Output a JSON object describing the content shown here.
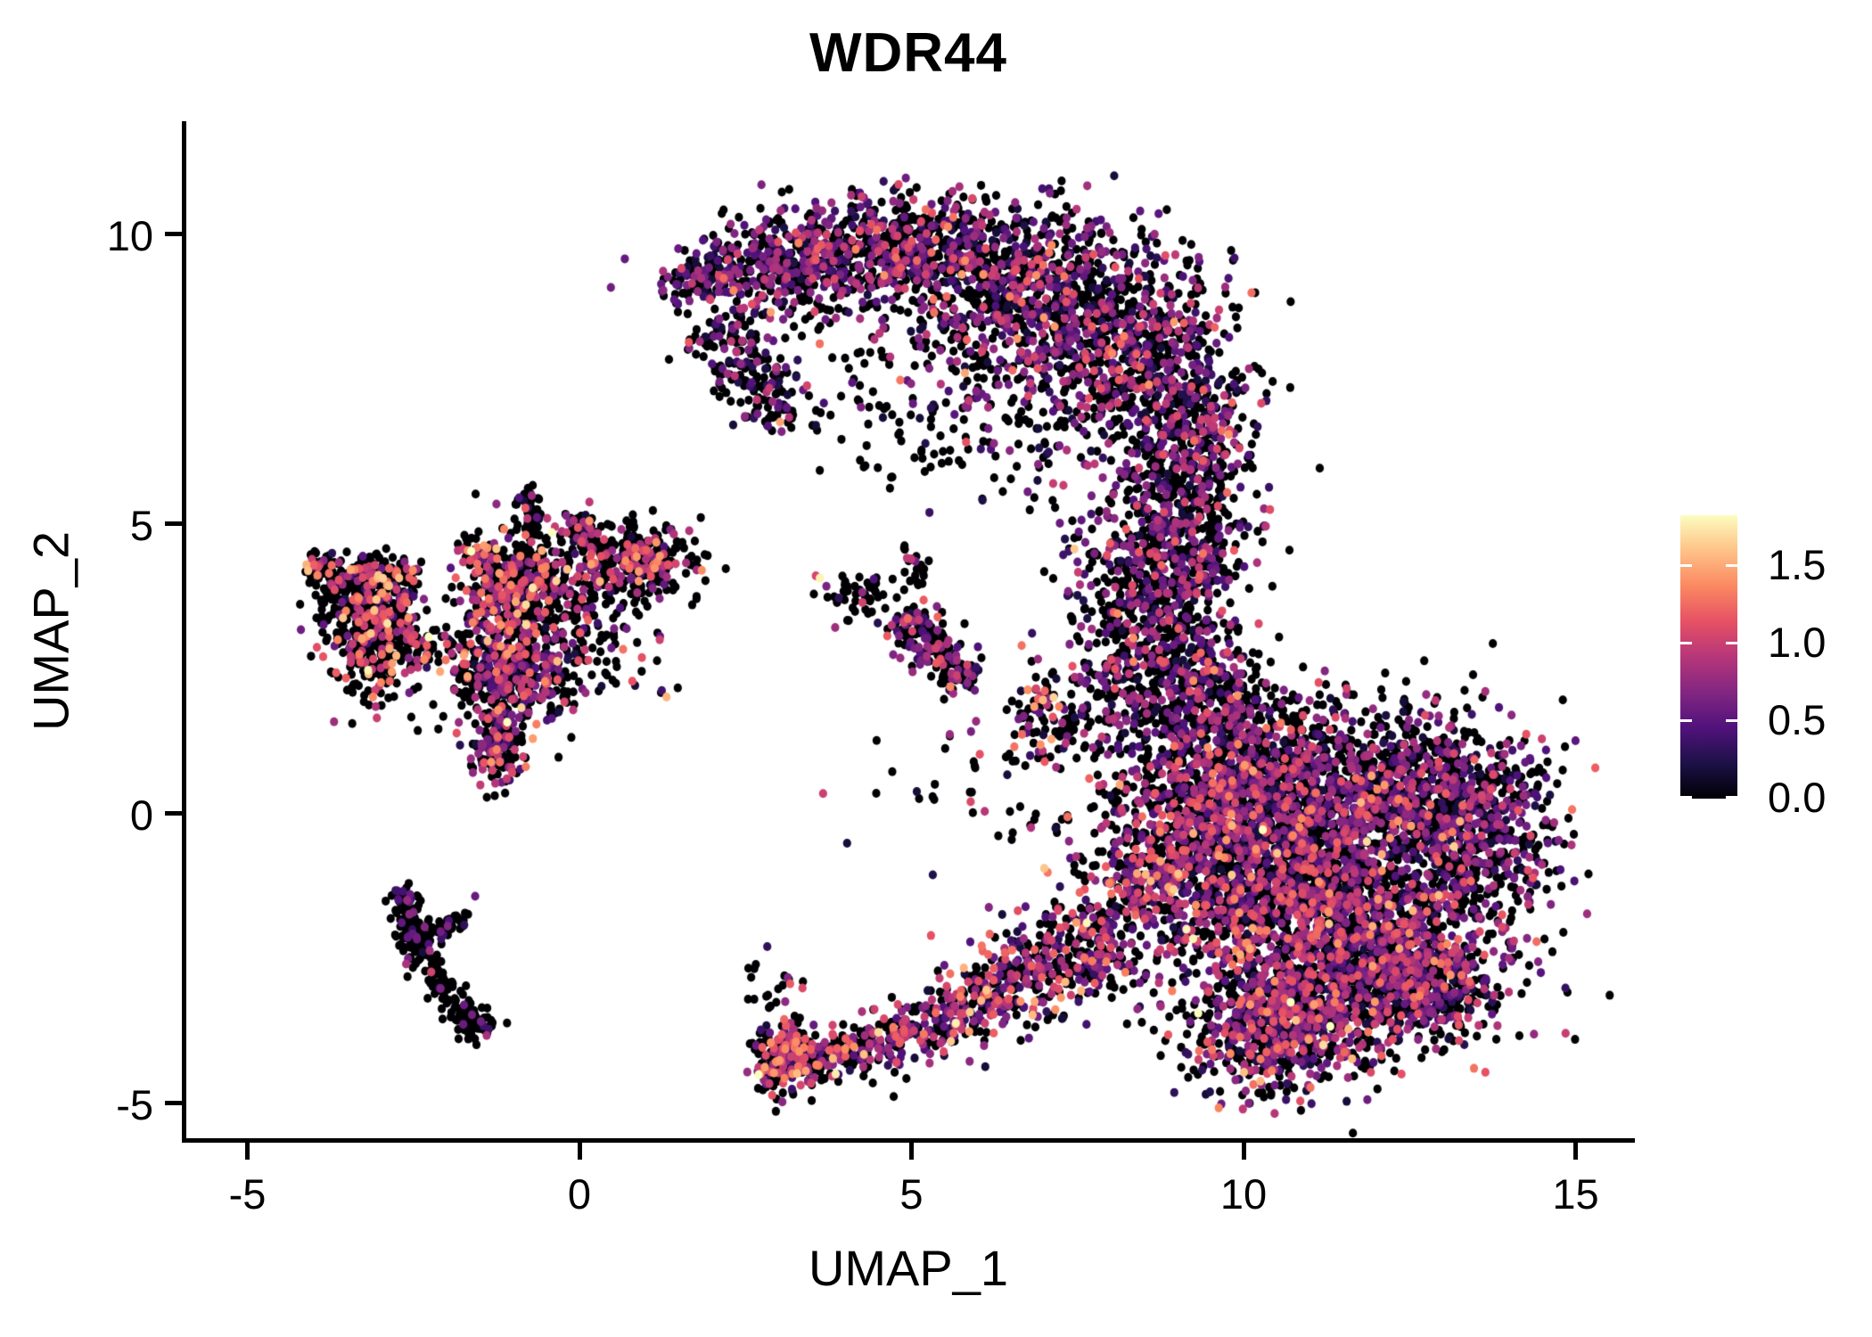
{
  "title": "WDR44",
  "colors": {
    "background": "#ffffff",
    "axis": "#000000",
    "text": "#000000"
  },
  "chart_data": {
    "type": "scatter",
    "title": "WDR44",
    "xlabel": "UMAP_1",
    "ylabel": "UMAP_2",
    "x_ticks": [
      -5,
      0,
      5,
      10,
      15
    ],
    "y_ticks": [
      -5,
      0,
      5,
      10
    ],
    "xlim": [
      -5.9,
      15.9
    ],
    "ylim": [
      -5.6,
      11.9
    ],
    "grid": false,
    "legend_position": "right",
    "point_radius_px": 4.7,
    "color_scale": {
      "name": "magma",
      "domain": [
        0,
        1.82
      ],
      "legend_ticks": [
        0.0,
        0.5,
        1.0,
        1.5
      ],
      "legend_tick_labels": [
        "0.0",
        "0.5",
        "1.0",
        "1.5"
      ],
      "stops": [
        "#000004",
        "#1d1147",
        "#51127c",
        "#822681",
        "#b63679",
        "#e65164",
        "#fb8861",
        "#fec287",
        "#fcfdbf"
      ]
    },
    "clusters": [
      {
        "name": "crescent-left-tip",
        "shape": "line",
        "x1": 1.3,
        "y1": 8.95,
        "x2": 2.35,
        "y2": 9.55,
        "w": 0.22,
        "n": 110,
        "p0": 0.5,
        "em": 0.6,
        "es": 0.3
      },
      {
        "name": "crescent-a",
        "shape": "gauss",
        "cx": 3.1,
        "cy": 9.45,
        "sx": 0.75,
        "sy": 0.45,
        "n": 380,
        "p0": 0.5,
        "em": 0.6,
        "es": 0.32
      },
      {
        "name": "crescent-b",
        "shape": "gauss",
        "cx": 4.9,
        "cy": 9.75,
        "sx": 0.85,
        "sy": 0.5,
        "n": 520,
        "p0": 0.58,
        "em": 0.62,
        "es": 0.32
      },
      {
        "name": "crescent-c",
        "shape": "gauss",
        "cx": 6.6,
        "cy": 9.0,
        "sx": 0.95,
        "sy": 0.75,
        "n": 780,
        "p0": 0.56,
        "em": 0.62,
        "es": 0.33
      },
      {
        "name": "crescent-d",
        "shape": "gauss",
        "cx": 8.3,
        "cy": 8.0,
        "sx": 0.8,
        "sy": 0.95,
        "n": 720,
        "p0": 0.56,
        "em": 0.62,
        "es": 0.33
      },
      {
        "name": "crescent-e",
        "shape": "gauss",
        "cx": 9.25,
        "cy": 6.5,
        "sx": 0.45,
        "sy": 0.75,
        "n": 320,
        "p0": 0.6,
        "em": 0.55,
        "es": 0.3
      },
      {
        "name": "crescent-left-edge",
        "shape": "line",
        "x1": 2.05,
        "y1": 8.55,
        "x2": 3.1,
        "y2": 6.75,
        "w": 0.3,
        "n": 200,
        "p0": 0.62,
        "em": 0.55,
        "es": 0.3
      },
      {
        "name": "crescent-hole-sparse",
        "shape": "gauss",
        "cx": 4.4,
        "cy": 7.7,
        "sx": 1.0,
        "sy": 0.65,
        "n": 80,
        "p0": 0.7,
        "em": 0.55,
        "es": 0.3
      },
      {
        "name": "crescent-under-arc",
        "shape": "gauss",
        "cx": 6.1,
        "cy": 6.7,
        "sx": 1.1,
        "sy": 0.5,
        "n": 120,
        "p0": 0.68,
        "em": 0.55,
        "es": 0.3
      },
      {
        "name": "neck-upper",
        "shape": "gauss",
        "cx": 9.0,
        "cy": 4.9,
        "sx": 0.55,
        "sy": 0.75,
        "n": 360,
        "p0": 0.6,
        "em": 0.6,
        "es": 0.32
      },
      {
        "name": "neck-mid",
        "shape": "gauss",
        "cx": 8.85,
        "cy": 3.3,
        "sx": 0.6,
        "sy": 0.85,
        "n": 440,
        "p0": 0.6,
        "em": 0.6,
        "es": 0.32
      },
      {
        "name": "neck-lower",
        "shape": "gauss",
        "cx": 9.05,
        "cy": 2.0,
        "sx": 0.75,
        "sy": 0.55,
        "n": 360,
        "p0": 0.58,
        "em": 0.62,
        "es": 0.33
      },
      {
        "name": "neck-west-sparse",
        "shape": "gauss",
        "cx": 7.95,
        "cy": 3.5,
        "sx": 0.45,
        "sy": 1.1,
        "n": 110,
        "p0": 0.66,
        "em": 0.6,
        "es": 0.3
      },
      {
        "name": "blob-nw",
        "shape": "gauss",
        "cx": 9.9,
        "cy": 0.35,
        "sx": 0.75,
        "sy": 0.65,
        "n": 850,
        "p0": 0.54,
        "em": 0.65,
        "es": 0.36
      },
      {
        "name": "blob-ne",
        "shape": "gauss",
        "cx": 12.0,
        "cy": 0.3,
        "sx": 1.05,
        "sy": 0.6,
        "n": 1000,
        "p0": 0.56,
        "em": 0.62,
        "es": 0.34
      },
      {
        "name": "blob-mid",
        "shape": "gauss",
        "cx": 10.9,
        "cy": -1.3,
        "sx": 1.35,
        "sy": 0.75,
        "n": 1500,
        "p0": 0.52,
        "em": 0.68,
        "es": 0.36
      },
      {
        "name": "blob-se",
        "shape": "gauss",
        "cx": 11.8,
        "cy": -2.7,
        "sx": 0.95,
        "sy": 0.7,
        "n": 1100,
        "p0": 0.52,
        "em": 0.68,
        "es": 0.36
      },
      {
        "name": "blob-south",
        "shape": "gauss",
        "cx": 10.45,
        "cy": -3.7,
        "sx": 0.7,
        "sy": 0.6,
        "n": 650,
        "p0": 0.5,
        "em": 0.72,
        "es": 0.38
      },
      {
        "name": "blob-east-bulge",
        "shape": "gauss",
        "cx": 13.55,
        "cy": -0.3,
        "sx": 0.55,
        "sy": 0.85,
        "n": 450,
        "p0": 0.58,
        "em": 0.6,
        "es": 0.32
      },
      {
        "name": "blob-west-edge",
        "shape": "gauss",
        "cx": 8.65,
        "cy": -1.0,
        "sx": 0.55,
        "sy": 0.9,
        "n": 380,
        "p0": 0.52,
        "em": 0.75,
        "es": 0.38
      },
      {
        "name": "blob-top-scatter",
        "shape": "gauss",
        "cx": 10.8,
        "cy": 1.7,
        "sx": 1.25,
        "sy": 0.4,
        "n": 140,
        "p0": 0.7,
        "em": 0.6,
        "es": 0.3
      },
      {
        "name": "blob-se-corner",
        "shape": "gauss",
        "cx": 12.9,
        "cy": -3.0,
        "sx": 0.5,
        "sy": 0.45,
        "n": 220,
        "p0": 0.55,
        "em": 0.65,
        "es": 0.34
      },
      {
        "name": "band-1",
        "shape": "line",
        "x1": 3.55,
        "y1": -4.25,
        "x2": 5.1,
        "y2": -3.85,
        "w": 0.25,
        "n": 190,
        "p0": 0.5,
        "em": 0.8,
        "es": 0.38
      },
      {
        "name": "band-2",
        "shape": "line",
        "x1": 5.1,
        "y1": -3.85,
        "x2": 6.4,
        "y2": -2.95,
        "w": 0.3,
        "n": 230,
        "p0": 0.5,
        "em": 0.8,
        "es": 0.38
      },
      {
        "name": "band-3",
        "shape": "line",
        "x1": 6.4,
        "y1": -2.95,
        "x2": 8.1,
        "y2": -2.1,
        "w": 0.45,
        "n": 330,
        "p0": 0.5,
        "em": 0.78,
        "es": 0.38
      },
      {
        "name": "bottom-clump",
        "shape": "gauss",
        "cx": 3.1,
        "cy": -4.2,
        "sx": 0.27,
        "sy": 0.3,
        "n": 250,
        "p0": 0.46,
        "em": 0.85,
        "es": 0.4
      },
      {
        "name": "left-arm-top",
        "shape": "line",
        "x1": -4.1,
        "y1": 4.35,
        "x2": -3.3,
        "y2": 3.95,
        "w": 0.17,
        "n": 130,
        "p0": 0.68,
        "em": 1.0,
        "es": 0.35
      },
      {
        "name": "left-arm-right",
        "shape": "line",
        "x1": -3.35,
        "y1": 4.2,
        "x2": -2.5,
        "y2": 3.95,
        "w": 0.2,
        "n": 150,
        "p0": 0.7,
        "em": 0.95,
        "es": 0.35
      },
      {
        "name": "left-lower-lobe",
        "shape": "gauss",
        "cx": -3.0,
        "cy": 2.95,
        "sx": 0.4,
        "sy": 0.45,
        "n": 380,
        "p0": 0.68,
        "em": 1.0,
        "es": 0.35
      },
      {
        "name": "left-connector",
        "shape": "gauss",
        "cx": -3.35,
        "cy": 3.6,
        "sx": 0.28,
        "sy": 0.28,
        "n": 110,
        "p0": 0.7,
        "em": 0.95,
        "es": 0.35
      },
      {
        "name": "cl-spike-1",
        "shape": "line",
        "x1": -0.78,
        "y1": 5.55,
        "x2": -0.72,
        "y2": 4.8,
        "w": 0.11,
        "n": 55,
        "p0": 0.85,
        "em": 0.7,
        "es": 0.3
      },
      {
        "name": "cl-spike-2",
        "shape": "line",
        "x1": -0.05,
        "y1": 5.15,
        "x2": 0.1,
        "y2": 4.6,
        "w": 0.13,
        "n": 60,
        "p0": 0.82,
        "em": 0.7,
        "es": 0.3
      },
      {
        "name": "cl-core",
        "shape": "gauss",
        "cx": -0.85,
        "cy": 3.85,
        "sx": 0.42,
        "sy": 0.48,
        "n": 450,
        "p0": 0.64,
        "em": 0.95,
        "es": 0.35
      },
      {
        "name": "cl-right-lobe",
        "shape": "gauss",
        "cx": 0.8,
        "cy": 4.4,
        "sx": 0.48,
        "sy": 0.33,
        "n": 300,
        "p0": 0.66,
        "em": 0.9,
        "es": 0.35
      },
      {
        "name": "cl-mid-scatter",
        "shape": "gauss",
        "cx": -1.3,
        "cy": 2.6,
        "sx": 0.42,
        "sy": 0.55,
        "n": 230,
        "p0": 0.64,
        "em": 0.85,
        "es": 0.35
      },
      {
        "name": "cl-lower-lobe",
        "shape": "gauss",
        "cx": -0.8,
        "cy": 2.3,
        "sx": 0.45,
        "sy": 0.45,
        "n": 280,
        "p0": 0.58,
        "em": 0.72,
        "es": 0.32
      },
      {
        "name": "cl-tail",
        "shape": "gauss",
        "cx": -1.25,
        "cy": 1.15,
        "sx": 0.2,
        "sy": 0.38,
        "n": 140,
        "p0": 0.55,
        "em": 0.8,
        "es": 0.35
      },
      {
        "name": "cl-east-sparse",
        "shape": "gauss",
        "cx": 0.35,
        "cy": 3.2,
        "sx": 0.55,
        "sy": 0.65,
        "n": 110,
        "p0": 0.68,
        "em": 0.75,
        "es": 0.33
      },
      {
        "name": "cl-west-chain",
        "shape": "line",
        "x1": -1.8,
        "y1": 4.5,
        "x2": -1.25,
        "y2": 4.55,
        "w": 0.12,
        "n": 40,
        "p0": 0.72,
        "em": 0.9,
        "es": 0.35
      },
      {
        "name": "mid-small-clump",
        "shape": "gauss",
        "cx": 4.2,
        "cy": 3.75,
        "sx": 0.25,
        "sy": 0.22,
        "n": 55,
        "p0": 0.82,
        "em": 0.6,
        "es": 0.3
      },
      {
        "name": "mid-diagonal",
        "shape": "line",
        "x1": 4.85,
        "y1": 3.45,
        "x2": 5.85,
        "y2": 2.25,
        "w": 0.2,
        "n": 190,
        "p0": 0.55,
        "em": 0.62,
        "es": 0.34
      },
      {
        "name": "mid-upper-chain",
        "shape": "line",
        "x1": 5.0,
        "y1": 4.6,
        "x2": 5.15,
        "y2": 3.9,
        "w": 0.1,
        "n": 22,
        "p0": 0.85,
        "em": 0.6,
        "es": 0.3
      },
      {
        "name": "mid-lower-clump",
        "shape": "gauss",
        "cx": 7.0,
        "cy": 1.6,
        "sx": 0.3,
        "sy": 0.45,
        "n": 90,
        "p0": 0.6,
        "em": 0.8,
        "es": 0.38
      },
      {
        "name": "check-vertical",
        "shape": "line",
        "x1": -2.63,
        "y1": -1.45,
        "x2": -2.5,
        "y2": -2.3,
        "w": 0.1,
        "n": 100,
        "p0": 0.9,
        "em": 0.5,
        "es": 0.2
      },
      {
        "name": "check-diagonal",
        "shape": "line",
        "x1": -2.5,
        "y1": -2.3,
        "x2": -1.62,
        "y2": -3.72,
        "w": 0.12,
        "n": 120,
        "p0": 0.9,
        "em": 0.5,
        "es": 0.2
      },
      {
        "name": "check-bottom-clump",
        "shape": "gauss",
        "cx": -1.58,
        "cy": -3.6,
        "sx": 0.16,
        "sy": 0.14,
        "n": 45,
        "p0": 0.9,
        "em": 0.5,
        "es": 0.2
      },
      {
        "name": "check-arm",
        "shape": "line",
        "x1": -2.56,
        "y1": -2.15,
        "x2": -1.65,
        "y2": -1.8,
        "w": 0.1,
        "n": 60,
        "p0": 0.88,
        "em": 0.5,
        "es": 0.2
      },
      {
        "name": "check-top-dots",
        "shape": "line",
        "x1": -2.66,
        "y1": -1.2,
        "x2": -2.66,
        "y2": -1.6,
        "w": 0.06,
        "n": 15,
        "p0": 0.92,
        "em": 0.5,
        "es": 0.2
      },
      {
        "name": "center-sparse",
        "shape": "gauss",
        "cx": 6.0,
        "cy": 0.3,
        "sx": 1.0,
        "sy": 0.85,
        "n": 60,
        "p0": 0.7,
        "em": 0.7,
        "es": 0.35
      },
      {
        "name": "band-west-sparse",
        "shape": "gauss",
        "cx": 2.9,
        "cy": -3.1,
        "sx": 0.25,
        "sy": 0.45,
        "n": 22,
        "p0": 0.85,
        "em": 0.6,
        "es": 0.3
      },
      {
        "name": "upper-strays",
        "shape": "gauss",
        "cx": 6.0,
        "cy": 5.6,
        "sx": 0.9,
        "sy": 0.3,
        "n": 7,
        "p0": 0.7,
        "em": 0.6,
        "es": 0.3
      }
    ],
    "special_points": [
      {
        "x": 3.56,
        "y": 4.1,
        "v": 1.05
      },
      {
        "x": 3.62,
        "y": 4.06,
        "v": 1.78
      },
      {
        "x": -1.57,
        "y": -1.43,
        "v": 0.55
      },
      {
        "x": 5.2,
        "y": 5.9,
        "v": 0
      },
      {
        "x": 6.85,
        "y": 5.45,
        "v": 0
      },
      {
        "x": 6.75,
        "y": 5.55,
        "v": 0.6
      },
      {
        "x": 7.0,
        "y": -0.95,
        "v": 1.6
      },
      {
        "x": 7.05,
        "y": -1.02,
        "v": 1.3
      },
      {
        "x": 9.14,
        "y": -2.0,
        "v": 1.78
      },
      {
        "x": 11.2,
        "y": -4.0,
        "v": 1.7
      }
    ]
  }
}
